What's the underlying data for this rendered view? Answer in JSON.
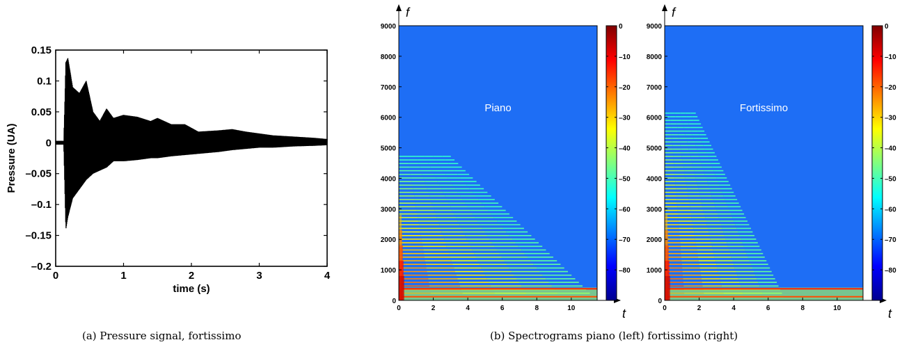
{
  "captions": {
    "a": "(a)  Pressure signal, fortissimo",
    "b": "(b)  Spectrograms piano (left) fortissimo (right)"
  },
  "colors": {
    "background_blue": "#1e6ef5",
    "colormap": [
      "#00008f",
      "#0000ff",
      "#0080ff",
      "#00ffff",
      "#80ff80",
      "#ffff00",
      "#ff8000",
      "#ff0000",
      "#800000"
    ],
    "waveform": "#000000"
  },
  "chart_data": [
    {
      "type": "line",
      "title": "",
      "xlabel": "time (s)",
      "ylabel": "Pressure (UA)",
      "xlim": [
        0,
        4
      ],
      "ylim": [
        -0.2,
        0.15
      ],
      "xticks": [
        0,
        1,
        2,
        3,
        4
      ],
      "xtick_labels": [
        "0",
        "1",
        "2",
        "3",
        "4"
      ],
      "yticks": [
        -0.2,
        -0.15,
        -0.1,
        -0.05,
        0,
        0.05,
        0.1,
        0.15
      ],
      "ytick_labels": [
        "–0.2",
        "–0.15",
        "–0.1",
        "–0.05",
        "0",
        "0.05",
        "0.1",
        "0.15"
      ],
      "grid": false,
      "series": [
        {
          "envelope_time": [
            0,
            0.12,
            0.15,
            0.18,
            0.25,
            0.35,
            0.45,
            0.55,
            0.65,
            0.75,
            0.85,
            1.0,
            1.2,
            1.4,
            1.5,
            1.7,
            1.9,
            2.1,
            2.4,
            2.6,
            2.8,
            3.0,
            3.2,
            3.5,
            3.8,
            4.0
          ],
          "envelope_upper": [
            0.003,
            0.003,
            0.13,
            0.137,
            0.09,
            0.08,
            0.1,
            0.05,
            0.035,
            0.055,
            0.04,
            0.045,
            0.042,
            0.035,
            0.04,
            0.03,
            0.03,
            0.018,
            0.02,
            0.022,
            0.018,
            0.015,
            0.012,
            0.01,
            0.008,
            0.006
          ],
          "envelope_lower": [
            -0.003,
            -0.003,
            -0.14,
            -0.12,
            -0.09,
            -0.075,
            -0.06,
            -0.05,
            -0.045,
            -0.04,
            -0.03,
            -0.03,
            -0.028,
            -0.025,
            -0.025,
            -0.022,
            -0.02,
            -0.018,
            -0.015,
            -0.012,
            -0.01,
            -0.008,
            -0.008,
            -0.006,
            -0.005,
            -0.004
          ]
        }
      ]
    },
    {
      "type": "heatmap",
      "title": "Piano",
      "xlabel": "t",
      "ylabel": "f",
      "xlim": [
        0,
        11.5
      ],
      "ylim": [
        0,
        9000
      ],
      "xticks": [
        0,
        2,
        4,
        6,
        8,
        10
      ],
      "yticks": [
        0,
        1000,
        2000,
        3000,
        4000,
        5000,
        6000,
        7000,
        8000,
        9000
      ],
      "colorbar": {
        "range": [
          -90,
          0
        ],
        "ticks": [
          0,
          -10,
          -20,
          -30,
          -40,
          -50,
          -60,
          -70,
          -80
        ],
        "tick_labels": [
          "0",
          "–10",
          "–20",
          "–30",
          "–40",
          "–50",
          "–60",
          "–70",
          "–80"
        ]
      },
      "fundamental_hz": 118,
      "harmonics_max_hz": 4800,
      "decay_time_s": 11.5
    },
    {
      "type": "heatmap",
      "title": "Fortissimo",
      "xlabel": "t",
      "ylabel": "f",
      "xlim": [
        0,
        11.5
      ],
      "ylim": [
        0,
        9000
      ],
      "xticks": [
        0,
        2,
        4,
        6,
        8,
        10
      ],
      "yticks": [
        0,
        1000,
        2000,
        3000,
        4000,
        5000,
        6000,
        7000,
        8000,
        9000
      ],
      "colorbar": {
        "range": [
          -90,
          0
        ],
        "ticks": [
          0,
          -10,
          -20,
          -30,
          -40,
          -50,
          -60,
          -70,
          -80
        ],
        "tick_labels": [
          "0",
          "–10",
          "–20",
          "–30",
          "–40",
          "–50",
          "–60",
          "–70",
          "–80"
        ]
      },
      "fundamental_hz": 118,
      "harmonics_max_hz": 6200,
      "decay_time_s": 7.0
    }
  ]
}
